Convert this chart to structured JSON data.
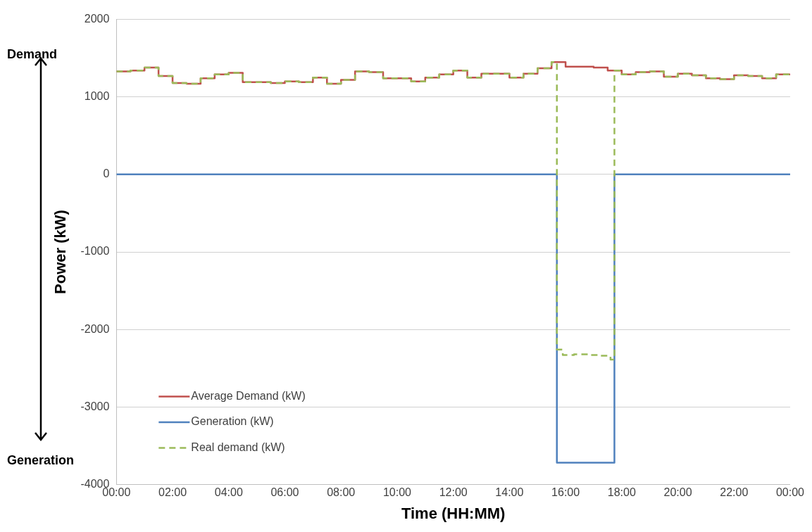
{
  "chart_data": {
    "type": "step",
    "xlabel": "Time (HH:MM)",
    "ylabel": "Power (kW)",
    "annotations": [
      "Demand",
      "Generation"
    ],
    "xlim": [
      0,
      24
    ],
    "xticks": [
      {
        "value": 0,
        "label": "00:00"
      },
      {
        "value": 2,
        "label": "02:00"
      },
      {
        "value": 4,
        "label": "04:00"
      },
      {
        "value": 6,
        "label": "06:00"
      },
      {
        "value": 8,
        "label": "08:00"
      },
      {
        "value": 10,
        "label": "10:00"
      },
      {
        "value": 12,
        "label": "12:00"
      },
      {
        "value": 14,
        "label": "14:00"
      },
      {
        "value": 16,
        "label": "16:00"
      },
      {
        "value": 18,
        "label": "18:00"
      },
      {
        "value": 20,
        "label": "20:00"
      },
      {
        "value": 22,
        "label": "22:00"
      },
      {
        "value": 24,
        "label": "00:00"
      }
    ],
    "ylim": [
      -4000,
      2000
    ],
    "yticks": [
      -4000,
      -3000,
      -2000,
      -1000,
      0,
      1000,
      2000
    ],
    "grid": "y",
    "legend": "bottom left",
    "series": [
      {
        "name": "Average Demand (kW)",
        "color": "#c0504d",
        "x": [
          0,
          0.5,
          1,
          1.5,
          2,
          2.5,
          3,
          3.5,
          4,
          4.5,
          5,
          5.5,
          6,
          6.5,
          7,
          7.5,
          8,
          8.5,
          9,
          9.5,
          10,
          10.5,
          11,
          11.5,
          12,
          12.5,
          13,
          13.5,
          14,
          14.5,
          15,
          15.5,
          16,
          16.5,
          17,
          17.5,
          18,
          18.5,
          19,
          19.5,
          20,
          20.5,
          21,
          21.5,
          22,
          22.5,
          23,
          23.5,
          24
        ],
        "values": [
          1330,
          1340,
          1380,
          1270,
          1180,
          1170,
          1240,
          1290,
          1310,
          1190,
          1190,
          1180,
          1200,
          1190,
          1250,
          1170,
          1220,
          1330,
          1320,
          1240,
          1240,
          1200,
          1250,
          1290,
          1340,
          1250,
          1300,
          1300,
          1250,
          1300,
          1370,
          1450,
          1390,
          1390,
          1380,
          1340,
          1290,
          1320,
          1330,
          1260,
          1300,
          1280,
          1240,
          1230,
          1280,
          1270,
          1240,
          1290,
          1290
        ]
      },
      {
        "name": "Generation (kW)",
        "color": "#4f81bd",
        "x": [
          0,
          15.69,
          17.74,
          24
        ],
        "values": [
          0,
          -3720,
          0,
          0
        ]
      },
      {
        "name": "Real demand (kW)",
        "color": "#9bbb59",
        "line_style": "dashed",
        "x": [
          0,
          0.5,
          1,
          1.5,
          2,
          2.5,
          3,
          3.5,
          4,
          4.5,
          5,
          5.5,
          6,
          6.5,
          7,
          7.5,
          8,
          8.5,
          9,
          9.5,
          10,
          10.5,
          11,
          11.5,
          12,
          12.5,
          13,
          13.5,
          14,
          14.5,
          15,
          15.5,
          15.69,
          15.9,
          16.3,
          16.8,
          17.2,
          17.6,
          17.74,
          18,
          18.5,
          19,
          19.5,
          20,
          20.5,
          21,
          21.5,
          22,
          22.5,
          23,
          23.5,
          24
        ],
        "values": [
          1330,
          1340,
          1380,
          1270,
          1180,
          1170,
          1240,
          1290,
          1310,
          1190,
          1190,
          1180,
          1200,
          1190,
          1250,
          1170,
          1220,
          1330,
          1320,
          1240,
          1240,
          1200,
          1250,
          1290,
          1340,
          1250,
          1300,
          1300,
          1250,
          1300,
          1370,
          1450,
          -2260,
          -2330,
          -2320,
          -2330,
          -2340,
          -2390,
          1340,
          1290,
          1320,
          1330,
          1260,
          1300,
          1280,
          1240,
          1230,
          1280,
          1270,
          1240,
          1290,
          1290
        ]
      }
    ]
  }
}
